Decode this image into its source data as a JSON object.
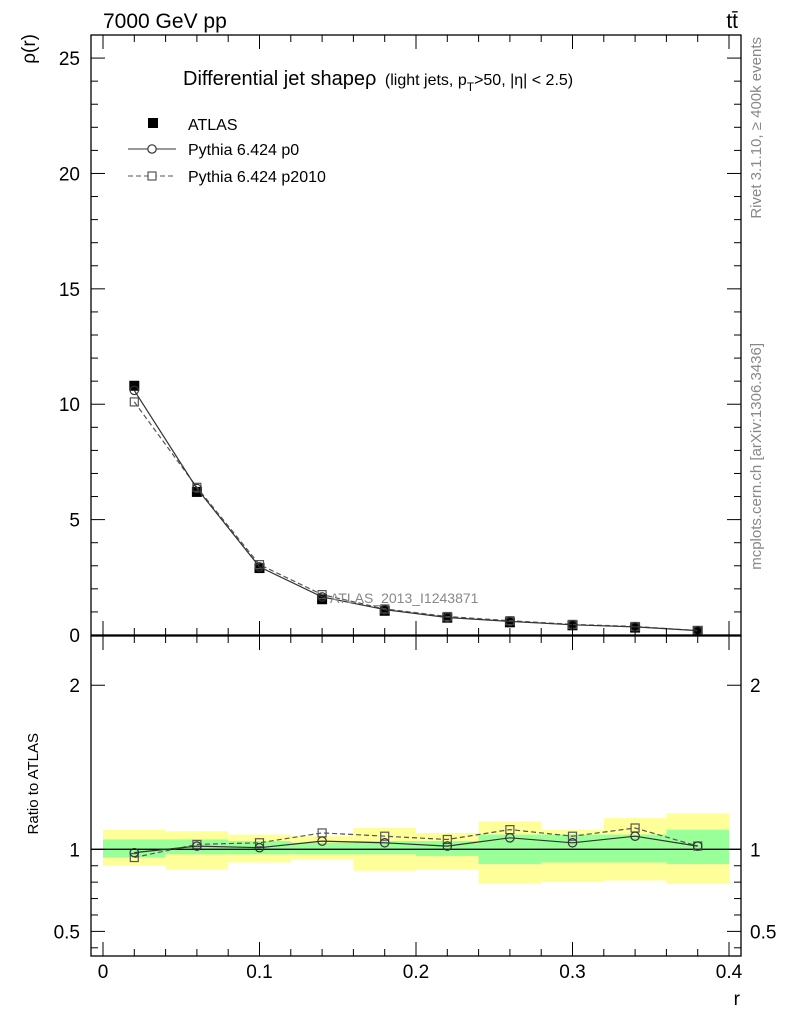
{
  "header": {
    "energy_label": "7000 GeV pp",
    "process_label": "tt̄",
    "title_main": "Differential jet shapeρ",
    "title_sub_a": "(light jets, p",
    "title_sub_sub": "T",
    "title_sub_b": ">50, |η| < 2.5)",
    "analysis_id": "ATLAS_2013_I1243871",
    "side_label_top": "Rivet 3.1.10, ≥ 400k events",
    "side_label_bottom": "mcplots.cern.ch [arXiv:1306.3436]"
  },
  "legend": {
    "atlas": "ATLAS",
    "p0": "Pythia 6.424 p0",
    "p2010": "Pythia 6.424 p2010"
  },
  "colors": {
    "band_inner": "#99ff99",
    "band_outer": "#ffff99",
    "data": "#000000",
    "mc_p0": "#333333",
    "mc_p2010": "#555555"
  },
  "chart_data": {
    "type": "scatter",
    "x": [
      0.02,
      0.06,
      0.1,
      0.14,
      0.18,
      0.22,
      0.26,
      0.3,
      0.34,
      0.38
    ],
    "bin_edges": [
      0.0,
      0.04,
      0.08,
      0.12,
      0.16,
      0.2,
      0.24,
      0.28,
      0.32,
      0.36,
      0.4
    ],
    "main": {
      "ylabel": "ρ(r)",
      "xlim": [
        0,
        0.4
      ],
      "ylim": [
        0,
        26
      ],
      "yticks": [
        0,
        5,
        10,
        15,
        20,
        25
      ],
      "series": [
        {
          "name": "ATLAS",
          "style": "filled-square",
          "values": [
            10.8,
            6.2,
            2.9,
            1.55,
            1.05,
            0.75,
            0.55,
            0.42,
            0.32,
            0.18
          ]
        },
        {
          "name": "Pythia 6.424 p0",
          "style": "solid-circle",
          "values": [
            10.6,
            6.35,
            2.95,
            1.65,
            1.1,
            0.76,
            0.59,
            0.44,
            0.35,
            0.19
          ]
        },
        {
          "name": "Pythia 6.424 p2010",
          "style": "dashed-square",
          "values": [
            10.1,
            6.4,
            3.05,
            1.75,
            1.13,
            0.8,
            0.62,
            0.46,
            0.37,
            0.19
          ]
        }
      ]
    },
    "ratio": {
      "ylabel": "Ratio to ATLAS",
      "xlabel": "r",
      "ylim": [
        0.35,
        2.3
      ],
      "yticks": [
        0.5,
        1,
        2
      ],
      "xticks": [
        0,
        0.1,
        0.2,
        0.3,
        0.4
      ],
      "band_inner": [
        [
          0.95,
          1.06
        ],
        [
          0.97,
          1.06
        ],
        [
          0.97,
          1.05
        ],
        [
          0.97,
          1.04
        ],
        [
          0.97,
          1.05
        ],
        [
          0.96,
          1.05
        ],
        [
          0.91,
          1.09
        ],
        [
          0.92,
          1.09
        ],
        [
          0.92,
          1.09
        ],
        [
          0.91,
          1.12
        ]
      ],
      "band_outer": [
        [
          0.9,
          1.12
        ],
        [
          0.88,
          1.11
        ],
        [
          0.92,
          1.09
        ],
        [
          0.94,
          1.08
        ],
        [
          0.87,
          1.13
        ],
        [
          0.88,
          1.1
        ],
        [
          0.79,
          1.17
        ],
        [
          0.8,
          1.12
        ],
        [
          0.81,
          1.19
        ],
        [
          0.79,
          1.22
        ]
      ],
      "series": [
        {
          "name": "Pythia 6.424 p0",
          "style": "solid-circle",
          "values": [
            0.98,
            1.02,
            1.01,
            1.05,
            1.04,
            1.02,
            1.07,
            1.04,
            1.08,
            1.02
          ]
        },
        {
          "name": "Pythia 6.424 p2010",
          "style": "dashed-square",
          "values": [
            0.95,
            1.03,
            1.04,
            1.1,
            1.08,
            1.06,
            1.12,
            1.08,
            1.13,
            1.02
          ]
        }
      ]
    }
  }
}
